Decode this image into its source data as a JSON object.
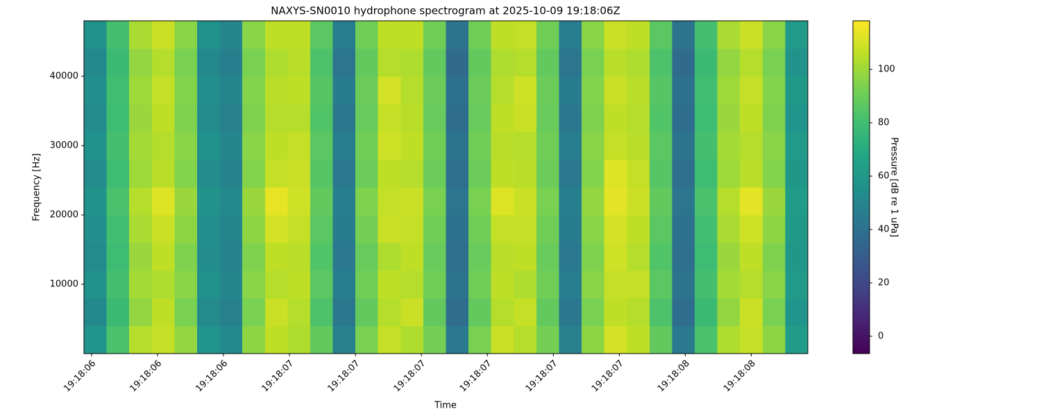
{
  "chart_data": {
    "type": "heatmap",
    "title": "NAXYS-SN0010 hydrophone spectrogram at 2025-10-09 19:18:06Z",
    "x_label": "Time",
    "y_label": "Frequency [Hz]",
    "colorbar_label": "Pressure [dB re 1 uPa]",
    "colormap": "viridis",
    "clim": [
      -6.5,
      118.2
    ],
    "cticks": [
      0,
      20,
      40,
      60,
      80,
      100
    ],
    "xlim": [
      6.48,
      8.4
    ],
    "ylim": [
      0,
      48000
    ],
    "xticks": [
      {
        "value": 6.5,
        "label": "19:18:06"
      },
      {
        "value": 6.675,
        "label": "19:18:06"
      },
      {
        "value": 6.85,
        "label": "19:18:06"
      },
      {
        "value": 7.025,
        "label": "19:18:07"
      },
      {
        "value": 7.2,
        "label": "19:18:07"
      },
      {
        "value": 7.375,
        "label": "19:18:07"
      },
      {
        "value": 7.55,
        "label": "19:18:07"
      },
      {
        "value": 7.725,
        "label": "19:18:07"
      },
      {
        "value": 7.9,
        "label": "19:18:07"
      },
      {
        "value": 8.075,
        "label": "19:18:08"
      },
      {
        "value": 8.25,
        "label": "19:18:08"
      }
    ],
    "yticks": [
      10000,
      20000,
      30000,
      40000
    ],
    "x": [
      6.51,
      6.57,
      6.63,
      6.69,
      6.75,
      6.81,
      6.87,
      6.93,
      6.99,
      7.05,
      7.11,
      7.17,
      7.23,
      7.29,
      7.35,
      7.41,
      7.47,
      7.53,
      7.59,
      7.65,
      7.71,
      7.77,
      7.83,
      7.89,
      7.95,
      8.01,
      8.07,
      8.13,
      8.19,
      8.25,
      8.31,
      8.37
    ],
    "y": [
      2000,
      6000,
      10000,
      14000,
      18000,
      22000,
      26000,
      30000,
      34000,
      38000,
      42000,
      46000
    ],
    "values": [
      [
        58,
        82,
        104,
        107,
        98,
        58,
        52,
        97,
        106,
        103,
        88,
        48,
        93,
        107,
        103,
        92,
        44,
        93,
        108,
        104,
        92,
        48,
        97,
        110,
        106,
        88,
        44,
        82,
        103,
        107,
        97,
        62
      ],
      [
        52,
        78,
        98,
        106,
        93,
        53,
        48,
        93,
        108,
        104,
        83,
        43,
        88,
        104,
        108,
        88,
        38,
        88,
        104,
        107,
        88,
        43,
        93,
        106,
        104,
        83,
        38,
        78,
        98,
        108,
        93,
        58
      ],
      [
        56,
        81,
        101,
        103,
        96,
        56,
        51,
        96,
        104,
        106,
        86,
        47,
        91,
        106,
        104,
        91,
        41,
        91,
        106,
        103,
        91,
        46,
        96,
        107,
        107,
        86,
        41,
        81,
        101,
        104,
        96,
        61
      ],
      [
        53,
        79,
        99,
        106,
        94,
        54,
        49,
        94,
        106,
        105,
        84,
        44,
        89,
        103,
        106,
        89,
        39,
        89,
        105,
        106,
        89,
        44,
        94,
        109,
        104,
        84,
        39,
        79,
        99,
        106,
        94,
        59
      ],
      [
        55,
        80,
        102,
        108,
        97,
        55,
        50,
        97,
        110,
        107,
        86,
        45,
        92,
        108,
        107,
        91,
        40,
        91,
        107,
        107,
        91,
        45,
        96,
        110,
        106,
        86,
        40,
        80,
        102,
        109,
        97,
        60
      ],
      [
        57,
        82,
        104,
        112,
        99,
        57,
        52,
        99,
        114,
        109,
        88,
        47,
        94,
        107,
        108,
        93,
        42,
        93,
        112,
        108,
        93,
        47,
        98,
        113,
        108,
        88,
        42,
        82,
        104,
        113,
        99,
        62
      ],
      [
        54,
        79,
        100,
        105,
        95,
        54,
        49,
        95,
        107,
        108,
        85,
        44,
        90,
        106,
        104,
        90,
        39,
        90,
        106,
        105,
        90,
        44,
        95,
        112,
        107,
        85,
        39,
        79,
        100,
        105,
        95,
        59
      ],
      [
        56,
        81,
        101,
        104,
        96,
        56,
        51,
        96,
        106,
        107,
        86,
        46,
        91,
        109,
        106,
        91,
        41,
        91,
        105,
        104,
        91,
        46,
        96,
        107,
        105,
        86,
        41,
        81,
        101,
        104,
        96,
        61
      ],
      [
        53,
        79,
        99,
        106,
        94,
        53,
        48,
        94,
        104,
        104,
        84,
        43,
        89,
        107,
        105,
        89,
        38,
        89,
        106,
        108,
        89,
        43,
        94,
        106,
        104,
        84,
        38,
        79,
        99,
        106,
        94,
        58
      ],
      [
        55,
        80,
        100,
        107,
        95,
        55,
        50,
        95,
        105,
        106,
        85,
        45,
        90,
        110,
        104,
        90,
        40,
        90,
        104,
        109,
        90,
        45,
        95,
        108,
        105,
        85,
        40,
        80,
        100,
        107,
        95,
        60
      ],
      [
        52,
        78,
        98,
        104,
        93,
        52,
        47,
        93,
        103,
        105,
        83,
        42,
        88,
        104,
        103,
        88,
        37,
        88,
        103,
        104,
        88,
        42,
        93,
        105,
        103,
        83,
        37,
        78,
        98,
        104,
        93,
        57
      ],
      [
        56,
        81,
        102,
        108,
        96,
        56,
        51,
        96,
        106,
        106,
        86,
        46,
        91,
        106,
        106,
        91,
        41,
        91,
        106,
        107,
        91,
        46,
        96,
        108,
        106,
        86,
        41,
        81,
        102,
        108,
        96,
        61
      ]
    ]
  }
}
